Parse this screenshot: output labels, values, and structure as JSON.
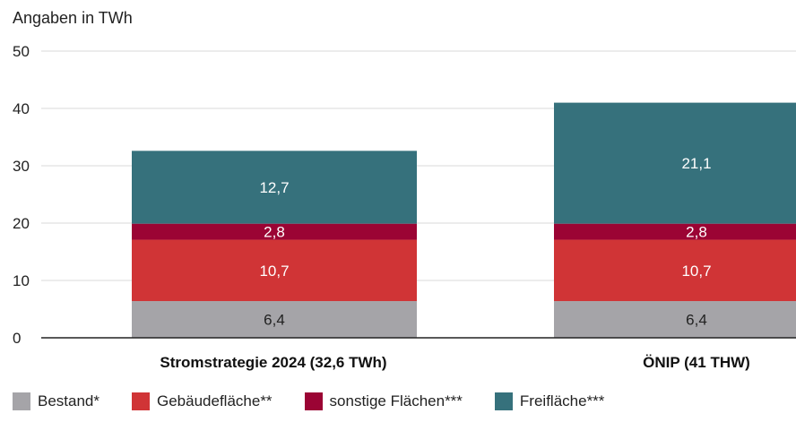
{
  "chart_data": {
    "type": "bar",
    "stacked": true,
    "unit_label": "Angaben in TWh",
    "categories": [
      "Stromstrategie 2024 (32,6 TWh)",
      "ÖNIP (41 THW)"
    ],
    "series": [
      {
        "name": "Bestand*",
        "values": [
          6.4,
          6.4
        ],
        "labels": [
          "6,4",
          "6,4"
        ],
        "color": "#a5a4a8",
        "label_color": "#222222"
      },
      {
        "name": "Gebäudefläche**",
        "values": [
          10.7,
          10.7
        ],
        "labels": [
          "10,7",
          "10,7"
        ],
        "color": "#d03436",
        "label_color": "#ffffff"
      },
      {
        "name": "sonstige Flächen***",
        "values": [
          2.8,
          2.8
        ],
        "labels": [
          "2,8",
          "2,8"
        ],
        "color": "#9b0434",
        "label_color": "#ffffff"
      },
      {
        "name": "Freifläche***",
        "values": [
          12.7,
          21.1
        ],
        "labels": [
          "12,7",
          "21,1"
        ],
        "color": "#36717c",
        "label_color": "#ffffff"
      }
    ],
    "yticks": [
      0,
      10,
      20,
      30,
      40,
      50
    ],
    "ylim": [
      0,
      50
    ],
    "grid": true,
    "legend_position": "bottom"
  }
}
